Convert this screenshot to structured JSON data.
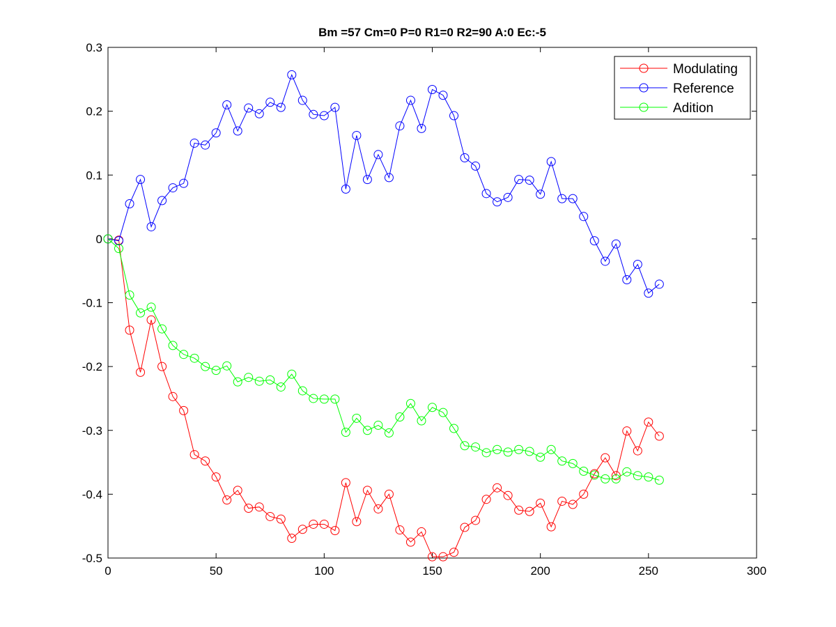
{
  "chart_data": {
    "type": "line",
    "title": "Bm =57  Cm=0  P=0  R1=0  R2=90  A:0  Ec:-5",
    "xlabel": "",
    "ylabel": "",
    "xlim": [
      0,
      300
    ],
    "ylim": [
      -0.5,
      0.3
    ],
    "xticks": [
      0,
      50,
      100,
      150,
      200,
      250,
      300
    ],
    "yticks": [
      0.3,
      0.2,
      0.1,
      0,
      -0.1,
      -0.2,
      -0.3,
      -0.4,
      -0.5
    ],
    "xtick_labels": [
      "0",
      "50",
      "100",
      "150",
      "200",
      "250",
      "300"
    ],
    "ytick_labels": [
      "0.3",
      "0.2",
      "0.1",
      "0",
      "-0.1",
      "-0.2",
      "-0.3",
      "-0.4",
      "-0.5"
    ],
    "grid": false,
    "legend_position": "top-right",
    "marker": "circle",
    "x": [
      0,
      5,
      10,
      15,
      20,
      25,
      30,
      35,
      40,
      45,
      50,
      55,
      60,
      65,
      70,
      75,
      80,
      85,
      90,
      95,
      100,
      105,
      110,
      115,
      120,
      125,
      130,
      135,
      140,
      145,
      150,
      155,
      160,
      165,
      170,
      175,
      180,
      185,
      190,
      195,
      200,
      205,
      210,
      215,
      220,
      225,
      230,
      235,
      240,
      245,
      250,
      255
    ],
    "series": [
      {
        "name": "Modulating",
        "color": "#ff0000",
        "values": [
          0,
          -0.002,
          -0.143,
          -0.209,
          -0.127,
          -0.2,
          -0.247,
          -0.269,
          -0.338,
          -0.348,
          -0.373,
          -0.409,
          -0.394,
          -0.422,
          -0.42,
          -0.435,
          -0.439,
          -0.469,
          -0.455,
          -0.447,
          -0.447,
          -0.457,
          -0.382,
          -0.443,
          -0.394,
          -0.423,
          -0.4,
          -0.456,
          -0.475,
          -0.459,
          -0.498,
          -0.498,
          -0.491,
          -0.452,
          -0.441,
          -0.408,
          -0.39,
          -0.402,
          -0.425,
          -0.427,
          -0.414,
          -0.451,
          -0.411,
          -0.416,
          -0.4,
          -0.368,
          -0.343,
          -0.371,
          -0.301,
          -0.332,
          -0.287,
          -0.309
        ]
      },
      {
        "name": "Reference",
        "color": "#0000ff",
        "values": [
          0,
          -0.003,
          0.055,
          0.093,
          0.019,
          0.06,
          0.08,
          0.087,
          0.15,
          0.147,
          0.166,
          0.21,
          0.169,
          0.205,
          0.196,
          0.214,
          0.206,
          0.257,
          0.217,
          0.195,
          0.193,
          0.206,
          0.078,
          0.162,
          0.093,
          0.132,
          0.096,
          0.177,
          0.217,
          0.173,
          0.234,
          0.225,
          0.193,
          0.127,
          0.114,
          0.071,
          0.058,
          0.065,
          0.093,
          0.092,
          0.07,
          0.121,
          0.063,
          0.063,
          0.035,
          -0.003,
          -0.035,
          -0.008,
          -0.064,
          -0.04,
          -0.085,
          -0.071
        ]
      },
      {
        "name": "Adition",
        "color": "#00ff00",
        "values": [
          0,
          -0.015,
          -0.088,
          -0.116,
          -0.107,
          -0.141,
          -0.167,
          -0.181,
          -0.187,
          -0.2,
          -0.206,
          -0.199,
          -0.224,
          -0.217,
          -0.223,
          -0.221,
          -0.232,
          -0.212,
          -0.238,
          -0.25,
          -0.251,
          -0.251,
          -0.303,
          -0.281,
          -0.3,
          -0.292,
          -0.304,
          -0.279,
          -0.258,
          -0.285,
          -0.264,
          -0.272,
          -0.297,
          -0.324,
          -0.326,
          -0.335,
          -0.33,
          -0.334,
          -0.33,
          -0.333,
          -0.342,
          -0.33,
          -0.348,
          -0.352,
          -0.364,
          -0.37,
          -0.376,
          -0.376,
          -0.365,
          -0.371,
          -0.373,
          -0.378
        ]
      }
    ]
  }
}
